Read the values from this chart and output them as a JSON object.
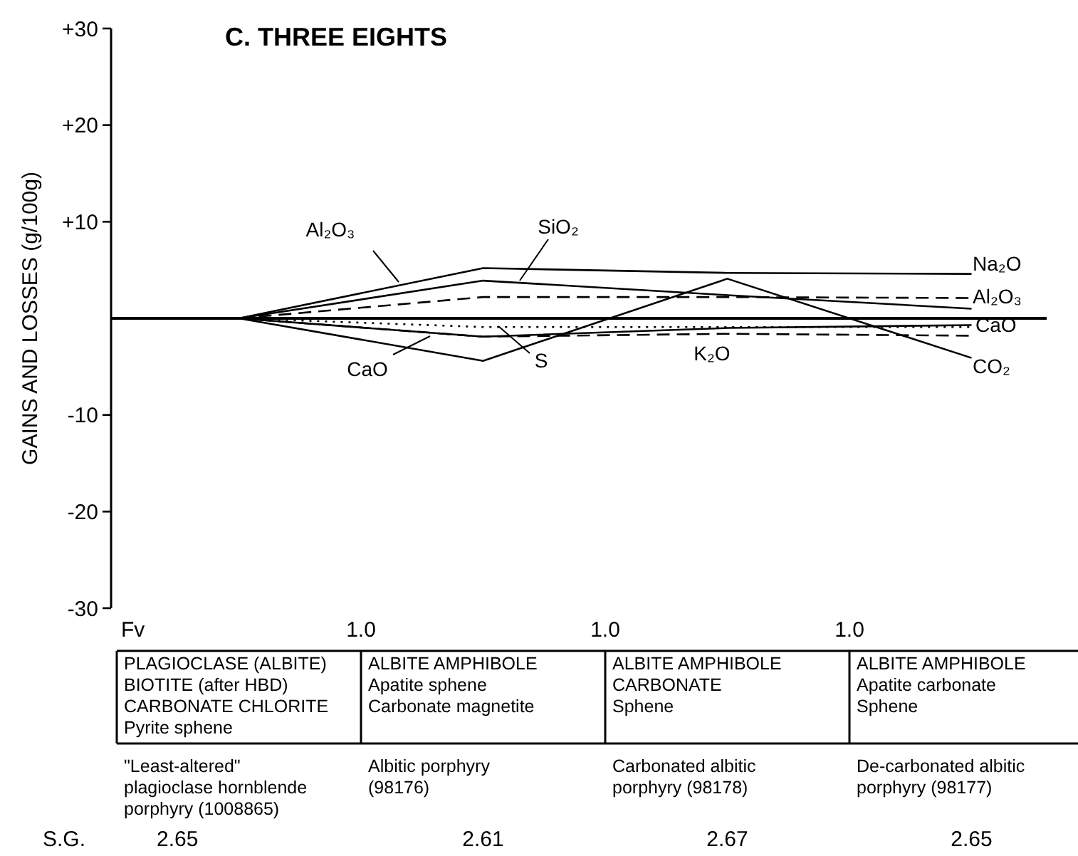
{
  "chart_data": {
    "type": "line",
    "title": "C.  THREE EIGHTS",
    "ylabel": "GAINS AND LOSSES (g/100g)",
    "categories": [
      null,
      null,
      null,
      null
    ],
    "series": [
      {
        "name": "Na₂O",
        "color": "#000000",
        "line_style": "solid",
        "values": [
          0,
          5.2,
          4.7,
          4.6
        ]
      },
      {
        "name": "SiO₂",
        "color": "#000000",
        "line_style": "solid",
        "values": [
          0,
          3.9,
          2.4,
          1.0
        ]
      },
      {
        "name": "Al₂O₃",
        "color": "#000000",
        "line_style": "dashed",
        "values": [
          0,
          2.2,
          2.2,
          2.1
        ]
      },
      {
        "name": "CaO",
        "color": "#000000",
        "line_style": "solid",
        "values": [
          0,
          -1.9,
          -1.0,
          -0.7
        ]
      },
      {
        "name": "S",
        "color": "#000000",
        "line_style": "dotted",
        "values": [
          0,
          -0.9,
          -0.9,
          -0.9
        ]
      },
      {
        "name": "K₂O",
        "color": "#000000",
        "line_style": "dashed",
        "values": [
          0,
          -1.9,
          -1.6,
          -1.8
        ]
      },
      {
        "name": "CO₂",
        "color": "#000000",
        "line_style": "solid",
        "values": [
          0,
          -4.4,
          4.1,
          -4.1
        ]
      }
    ],
    "ylim": [
      -30,
      30
    ],
    "yticks": [
      {
        "value": 30,
        "label": "+30"
      },
      {
        "value": 20,
        "label": "+20"
      },
      {
        "value": 10,
        "label": "+10"
      },
      -10,
      -20,
      -30
    ],
    "ref_lines": [
      {
        "axis": "y",
        "value": 0,
        "color": "#000000"
      }
    ],
    "annotations": [
      "Fv",
      "1.0",
      "1.0",
      "1.0",
      "PLAGIOCLASE (ALBITE)\nBIOTITE (after HBD)\nCARBONATE CHLORITE\nPyrite sphene",
      "ALBITE AMPHIBOLE\nApatite sphene\nCarbonate magnetite",
      "ALBITE AMPHIBOLE\nCARBONATE\nSphene",
      "ALBITE AMPHIBOLE\nApatite carbonate\nSphene",
      "S.G.",
      "2.65",
      "2.61",
      "2.67",
      "2.65",
      "\"Least-altered\" plagioclase hornblende porphyry (1008865)",
      "Albitic porphyry (98176)",
      "Carbonated albitic porphyry (98178)",
      "De-carbonated albitic porphyry (98177)"
    ],
    "grid": false,
    "marker": "none"
  }
}
